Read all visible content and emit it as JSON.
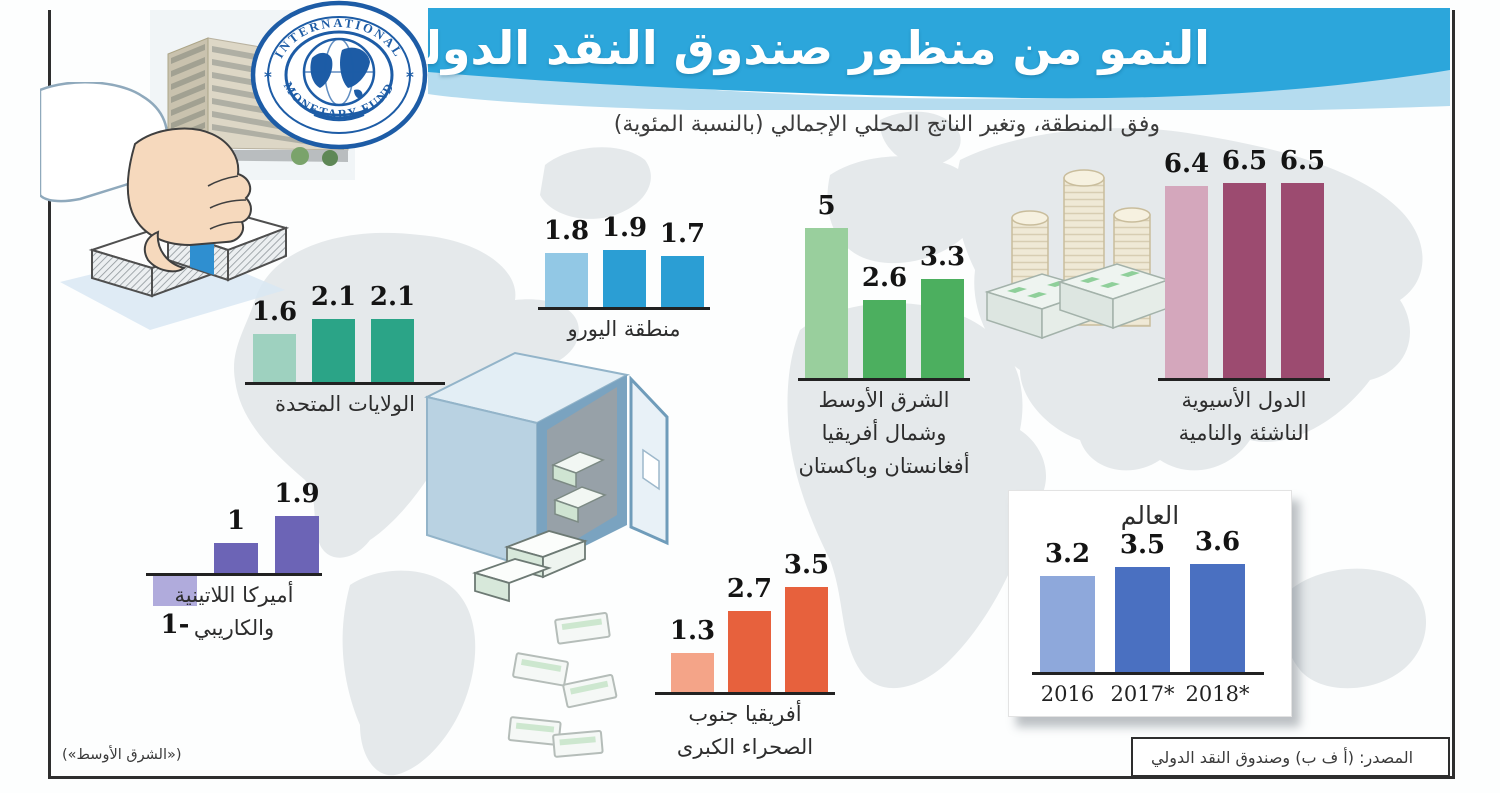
{
  "title": "النمو من منظور صندوق النقد الدولي",
  "subtitle": "وفق المنطقة، وتغير الناتج المحلي الإجمالي (بالنسبة المئوية)",
  "source": "المصدر: (أ ف ب) وصندوق النقد الدولي",
  "credit": "(«الشرق الأوسط»)",
  "logo": {
    "text_top": "INTERNATIONAL",
    "text_bottom": "MONETARY FUND",
    "star_left": "*",
    "star_right": "*"
  },
  "colors": {
    "banner": "#2ca6db",
    "banner_wave": "#b5dcef",
    "frame": "#2e2e2e",
    "map_land": "#e5e9eb",
    "baseline": "#222222",
    "logo_blue": "#1d5ca6"
  },
  "chart_data": [
    {
      "id": "euro",
      "type": "bar",
      "unit": "percent",
      "region": "منطقة اليورو",
      "region_lines": [
        "منطقة اليورو"
      ],
      "values": [
        1.8,
        1.9,
        1.7
      ],
      "value_labels": [
        "1.8",
        "1.9",
        "1.7"
      ],
      "color_2016": "#92c8e5",
      "color_forecast": "#2b9ed4",
      "show_categories": false
    },
    {
      "id": "us",
      "type": "bar",
      "unit": "percent",
      "region": "الولايات المتحدة",
      "region_lines": [
        "الولايات المتحدة"
      ],
      "values": [
        1.6,
        2.1,
        2.1
      ],
      "value_labels": [
        "1.6",
        "2.1",
        "2.1"
      ],
      "color_2016": "#9ed1bf",
      "color_forecast": "#2ba487",
      "show_categories": false
    },
    {
      "id": "mena",
      "type": "bar",
      "unit": "percent",
      "region": "الشرق الأوسط وشمال أفريقيا أفغانستان وباكستان",
      "region_lines": [
        "الشرق الأوسط",
        "وشمال أفريقيا",
        "أفغانستان وباكستان"
      ],
      "values": [
        5,
        2.6,
        3.3
      ],
      "value_labels": [
        "5",
        "2.6",
        "3.3"
      ],
      "color_2016": "#99cf9d",
      "color_forecast": "#4caf5f",
      "show_categories": false
    },
    {
      "id": "asia",
      "type": "bar",
      "unit": "percent",
      "region": "الدول الأسيوية الناشئة والنامية",
      "region_lines": [
        "الدول الأسيوية",
        "الناشئة والنامية"
      ],
      "values": [
        6.4,
        6.5,
        6.5
      ],
      "value_labels": [
        "6.4",
        "6.5",
        "6.5"
      ],
      "color_2016": "#d4a7bc",
      "color_forecast": "#9c4b70",
      "show_categories": false
    },
    {
      "id": "latam",
      "type": "bar",
      "unit": "percent",
      "region": "أميركا اللاتينية والكاريبي",
      "region_lines": [
        "أميركا اللاتينية",
        "والكاريبي"
      ],
      "values": [
        -1,
        1,
        1.9
      ],
      "value_labels": [
        "1-",
        "1",
        "1.9"
      ],
      "color_2016": "#b0abdc",
      "color_forecast": "#6c64b6",
      "show_categories": false
    },
    {
      "id": "africa",
      "type": "bar",
      "unit": "percent",
      "region": "أفريقيا جنوب الصحراء الكبرى",
      "region_lines": [
        "أفريقيا جنوب",
        "الصحراء الكبرى"
      ],
      "values": [
        1.3,
        2.7,
        3.5
      ],
      "value_labels": [
        "1.3",
        "2.7",
        "3.5"
      ],
      "color_2016": "#f4a488",
      "color_forecast": "#e7613d",
      "show_categories": false
    },
    {
      "id": "world",
      "type": "bar",
      "unit": "percent",
      "region": "العالم",
      "region_lines": [
        "العالم"
      ],
      "categories": [
        "2016",
        "2017*",
        "2018*"
      ],
      "values": [
        3.2,
        3.5,
        3.6
      ],
      "value_labels": [
        "3.2",
        "3.5",
        "3.6"
      ],
      "color_2016": "#8ea8db",
      "color_forecast": "#4a70c1",
      "show_categories": true
    }
  ]
}
